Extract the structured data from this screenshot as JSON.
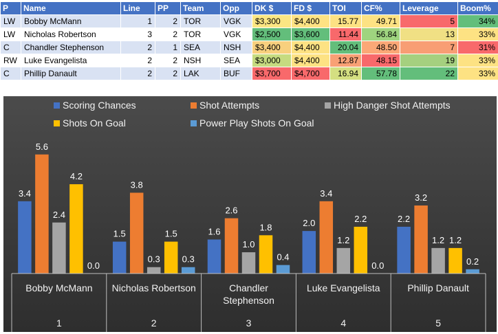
{
  "table": {
    "headers": [
      "P",
      "Name",
      "Line",
      "PP",
      "Team",
      "Opp",
      "DK $",
      "FD $",
      "TOI",
      "CF%",
      "Leverage",
      "Boom%"
    ],
    "rows": [
      {
        "pos": "LW",
        "name": "Bobby McMann",
        "line": "1",
        "pp": "2",
        "team": "TOR",
        "opp": "VGK",
        "dk": "$3,300",
        "fd": "$4,400",
        "toi": "15.77",
        "cf": "49.71",
        "leverage": "5",
        "boom": "34%"
      },
      {
        "pos": "LW",
        "name": "Nicholas Robertson",
        "line": "3",
        "pp": "2",
        "team": "TOR",
        "opp": "VGK",
        "dk": "$2,500",
        "fd": "$3,600",
        "toi": "11.44",
        "cf": "56.84",
        "leverage": "13",
        "boom": "33%"
      },
      {
        "pos": "C",
        "name": "Chandler Stephenson",
        "line": "2",
        "pp": "1",
        "team": "SEA",
        "opp": "NSH",
        "dk": "$3,400",
        "fd": "$4,400",
        "toi": "20.04",
        "cf": "48.50",
        "leverage": "7",
        "boom": "31%"
      },
      {
        "pos": "RW",
        "name": "Luke Evangelista",
        "line": "2",
        "pp": "2",
        "team": "NSH",
        "opp": "SEA",
        "dk": "$3,000",
        "fd": "$4,400",
        "toi": "12.87",
        "cf": "48.15",
        "leverage": "19",
        "boom": "33%"
      },
      {
        "pos": "C",
        "name": "Phillip Danault",
        "line": "2",
        "pp": "2",
        "team": "LAK",
        "opp": "BUF",
        "dk": "$3,700",
        "fd": "$4,700",
        "toi": "16.94",
        "cf": "57.78",
        "leverage": "22",
        "boom": "33%"
      }
    ],
    "cell_colors": {
      "dk": [
        "#fbe683",
        "#63be7b",
        "#f8d07e",
        "#c6db80",
        "#f8696b"
      ],
      "fd": [
        "#fde283",
        "#63be7b",
        "#fde283",
        "#fde283",
        "#f8696b"
      ],
      "toi": [
        "#fde283",
        "#f8696b",
        "#63be7b",
        "#f9a075",
        "#d4df81"
      ],
      "cf": [
        "#fde283",
        "#9fd47f",
        "#fba877",
        "#f8696b",
        "#63be7b"
      ],
      "leverage": [
        "#f8696b",
        "#f0e084",
        "#f89e74",
        "#a5d07f",
        "#63be7b"
      ],
      "boom": [
        "#63be7b",
        "#fde283",
        "#f8696b",
        "#fde283",
        "#fde283"
      ]
    }
  },
  "chart_data": {
    "type": "bar",
    "title": "",
    "legend": {
      "position": "top"
    },
    "categories": [
      {
        "name": "Bobby McMann",
        "index": "1"
      },
      {
        "name": "Nicholas Robertson",
        "index": "2"
      },
      {
        "name": "Chandler Stephenson",
        "index": "3"
      },
      {
        "name": "Luke Evangelista",
        "index": "4"
      },
      {
        "name": "Phillip Danault",
        "index": "5"
      }
    ],
    "series": [
      {
        "name": "Scoring Chances",
        "color": "#4472c4",
        "values": [
          3.4,
          1.5,
          1.6,
          2.0,
          2.2
        ]
      },
      {
        "name": "Shot Attempts",
        "color": "#ed7d31",
        "values": [
          5.6,
          3.8,
          2.6,
          3.4,
          3.2
        ]
      },
      {
        "name": "High Danger Shot Attempts",
        "color": "#a5a5a5",
        "values": [
          2.4,
          0.3,
          1.0,
          1.2,
          1.2
        ]
      },
      {
        "name": "Shots On Goal",
        "color": "#ffc000",
        "values": [
          4.2,
          1.5,
          1.8,
          2.2,
          1.2
        ]
      },
      {
        "name": "Power Play Shots On Goal",
        "color": "#5b9bd5",
        "values": [
          0.0,
          0.3,
          0.4,
          0.0,
          0.2
        ]
      }
    ],
    "ylim": [
      0,
      6.4
    ],
    "grid": false,
    "data_labels": true,
    "label_color": "#ffffff"
  }
}
